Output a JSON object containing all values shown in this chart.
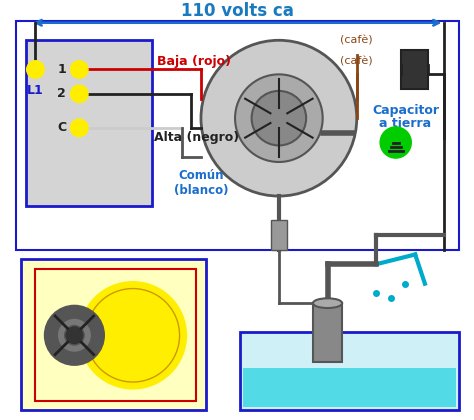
{
  "title": "110 volts ca",
  "title_color": "#1a7abf",
  "title_arrow_color": "#1a7abf",
  "bg_color": "#ffffff",
  "labels": {
    "baja": "Baja (rojo)",
    "alta": "Alta (negro)",
    "comun": "Común\n(blanco)",
    "capacitor": "Capacitor",
    "a_tierra": "a tierra",
    "cafe1": "(cafè)",
    "cafe2": "(cafè)",
    "L1": "L1",
    "1": "1",
    "2": "2",
    "C": "C"
  },
  "colors": {
    "red": "#cc0000",
    "black": "#222222",
    "blue": "#1a6fcc",
    "brown": "#8B4513",
    "gray": "#888888",
    "light_gray": "#cccccc",
    "dark_gray": "#555555",
    "yellow": "#ffee00",
    "green": "#00aa00",
    "light_blue": "#b0e0f8",
    "light_yellow": "#ffffc0",
    "white": "#ffffff",
    "blue_border": "#1a1acc",
    "panel_bg": "#d4d4d4",
    "cyan": "#00ced1"
  }
}
